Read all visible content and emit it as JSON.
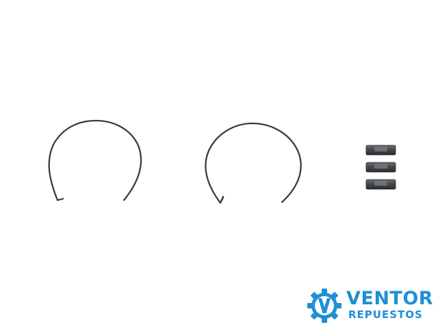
{
  "logo": {
    "name": "VENTOR",
    "tagline": "REPUESTOS",
    "icon": "gear-v-icon",
    "color": "#1f8fd6"
  },
  "parts": {
    "rings": [
      {
        "name": "snap-ring-left"
      },
      {
        "name": "snap-ring-right"
      }
    ],
    "blocks": [
      {
        "name": "synchro-key-top"
      },
      {
        "name": "synchro-key-middle"
      },
      {
        "name": "synchro-key-bottom"
      }
    ],
    "color": "#3a3d3f"
  }
}
